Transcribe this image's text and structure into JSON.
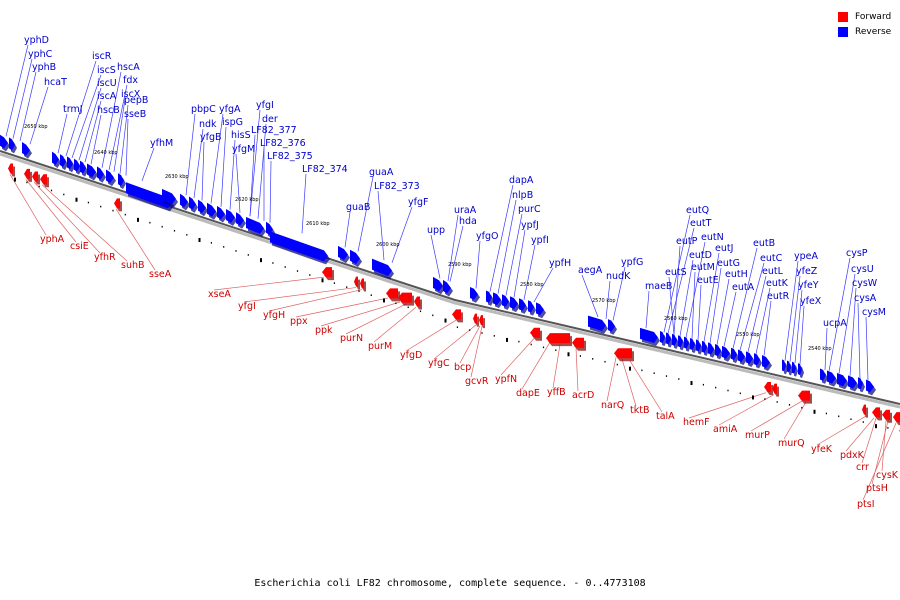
{
  "legend": {
    "forward_label": "Forward",
    "reverse_label": "Reverse",
    "forward_color": "#ff0000",
    "reverse_color": "#0000ff"
  },
  "footer": {
    "caption": "Escherichia coli LF82 chromosome, complete sequence. - 0..4773108"
  },
  "colors": {
    "forward_label_color": "#cc0000",
    "reverse_label_color": "#0000cc",
    "leader_forward": "#e06060",
    "leader_reverse": "#3a3aff",
    "backbone": "#555555",
    "tick": "#000000"
  },
  "scale_labels": [
    "2650 kbp",
    "2640 kbp",
    "2630 kbp",
    "2620 kbp",
    "2610 kbp",
    "2600 kbp",
    "2590 kbp",
    "2580 kbp",
    "2570 kbp",
    "2560 kbp",
    "2550 kbp",
    "2540 kbp"
  ],
  "reverse_genes": [
    "yphD",
    "yphC",
    "yphB",
    "hcaT",
    "trmJ",
    "iscR",
    "iscS",
    "iscU",
    "iscA",
    "hscB",
    "hscA",
    "fdx",
    "iscX",
    "pepB",
    "sseB",
    "yfhM",
    "pbpC",
    "ndk",
    "yfgB",
    "yfgA",
    "ispG",
    "hisS",
    "yfgM",
    "yfgI",
    "der",
    "LF82_377",
    "LF82_376",
    "LF82_375",
    "LF82_374",
    "guaB",
    "guaA",
    "LF82_373",
    "yfgF",
    "upp",
    "uraA",
    "hda",
    "yfgO",
    "dapA",
    "nlpB",
    "purC",
    "ypfJ",
    "ypfI",
    "ypfH",
    "aegA",
    "ypfG",
    "nudK",
    "maeB",
    "eutQ",
    "eutT",
    "eutP",
    "eutS",
    "eutD",
    "eutN",
    "eutM",
    "eutE",
    "eutJ",
    "eutG",
    "eutH",
    "eutA",
    "eutB",
    "eutC",
    "eutL",
    "eutK",
    "eutR",
    "ypeA",
    "yfeZ",
    "yfeY",
    "yfeX",
    "ucpA",
    "cysP",
    "cysU",
    "cysW",
    "cysA",
    "cysM"
  ],
  "forward_genes": [
    "yphA",
    "csiE",
    "yfhR",
    "suhB",
    "sseA",
    "xseA",
    "yfgI",
    "yfgH",
    "ppx",
    "ppk",
    "purN",
    "purM",
    "yfgD",
    "yfgC",
    "bcp",
    "gcvR",
    "ypfN",
    "dapE",
    "yffB",
    "acrD",
    "narQ",
    "tktB",
    "talA",
    "hemF",
    "amiA",
    "murP",
    "murQ",
    "yfeK",
    "pdxK",
    "crr",
    "cysK",
    "ptsH",
    "ptsI"
  ]
}
